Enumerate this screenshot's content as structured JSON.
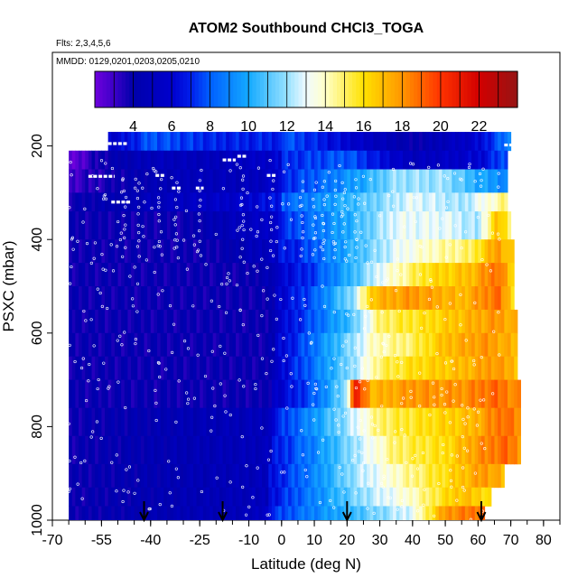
{
  "chart_data": {
    "type": "heatmap",
    "title": "ATOM2 Southbound CHCl3_TOGA",
    "annotations": [
      "Flts: 2,3,4,5,6",
      "MMDD: 0129,0201,0203,0205,0210"
    ],
    "xlabel": "Latitude (deg N)",
    "ylabel": "PSXC (mbar)",
    "xlim": [
      -70,
      85
    ],
    "ylim": [
      1000,
      0
    ],
    "x_ticks": [
      -70,
      -55,
      -40,
      -25,
      -10,
      0,
      10,
      20,
      30,
      40,
      50,
      60,
      70,
      80
    ],
    "x_tick_labels": [
      "-70",
      "-55",
      "-40",
      "-25",
      "-10",
      "0",
      "10",
      "20",
      "30",
      "40",
      "50",
      "60",
      "70",
      "80"
    ],
    "y_ticks": [
      200,
      400,
      600,
      800,
      1000
    ],
    "y_tick_labels": [
      "200",
      "400",
      "600",
      "800",
      "1000"
    ],
    "colorbar": {
      "range": [
        2,
        24
      ],
      "ticks": [
        4,
        6,
        8,
        10,
        12,
        14,
        16,
        18,
        20,
        22
      ],
      "tick_labels": [
        "4",
        "6",
        "8",
        "10",
        "12",
        "14",
        "16",
        "18",
        "20",
        "22"
      ]
    },
    "profile_markers_lat": [
      -42,
      -18,
      20,
      61
    ],
    "heat_rows": [
      {
        "p_top": 170,
        "p_bot": 210,
        "lat_start": -53,
        "lat_end": 70,
        "lat": [
          -50,
          -40,
          -20,
          0,
          20,
          40,
          60,
          70
        ],
        "val": [
          7,
          9,
          8,
          8,
          6,
          4,
          6,
          9
        ]
      },
      {
        "p_top": 210,
        "p_bot": 250,
        "lat_start": -65,
        "lat_end": 69,
        "lat": [
          -65,
          -55,
          -40,
          -20,
          0,
          20,
          40,
          60,
          69
        ],
        "val": [
          3,
          5,
          6,
          6,
          7,
          8,
          5,
          6,
          8
        ]
      },
      {
        "p_top": 250,
        "p_bot": 300,
        "lat_start": -65,
        "lat_end": 69,
        "lat": [
          -65,
          -50,
          -30,
          -10,
          10,
          25,
          35,
          50,
          60,
          69
        ],
        "val": [
          4,
          5,
          6,
          6,
          8,
          10,
          12,
          12,
          10,
          9
        ]
      },
      {
        "p_top": 300,
        "p_bot": 340,
        "lat_start": -65,
        "lat_end": 69,
        "lat": [
          -65,
          -40,
          -10,
          10,
          25,
          40,
          55,
          65,
          69
        ],
        "val": [
          5,
          6,
          7,
          9,
          11,
          13,
          12,
          14,
          15
        ]
      },
      {
        "p_top": 340,
        "p_bot": 400,
        "lat_start": -65,
        "lat_end": 70,
        "lat": [
          -65,
          -30,
          0,
          20,
          35,
          50,
          60,
          66,
          70
        ],
        "val": [
          5,
          5,
          7,
          10,
          13,
          13,
          12,
          17,
          15
        ]
      },
      {
        "p_top": 400,
        "p_bot": 450,
        "lat_start": -65,
        "lat_end": 71,
        "lat": [
          -65,
          -20,
          5,
          20,
          35,
          45,
          58,
          66,
          71
        ],
        "val": [
          5,
          5,
          7,
          10,
          13,
          14,
          15,
          18,
          16
        ]
      },
      {
        "p_top": 450,
        "p_bot": 500,
        "lat_start": -65,
        "lat_end": 71,
        "lat": [
          -65,
          -10,
          8,
          20,
          30,
          45,
          58,
          66,
          71
        ],
        "val": [
          5,
          5,
          7,
          10,
          13,
          16,
          17,
          19,
          16
        ]
      },
      {
        "p_top": 500,
        "p_bot": 550,
        "lat_start": -65,
        "lat_end": 71,
        "lat": [
          -65,
          -5,
          10,
          22,
          28,
          40,
          55,
          66,
          71
        ],
        "val": [
          5,
          5,
          8,
          12,
          17,
          18,
          17,
          19,
          16
        ]
      },
      {
        "p_top": 550,
        "p_bot": 600,
        "lat_start": -65,
        "lat_end": 72,
        "lat": [
          -65,
          -5,
          10,
          22,
          30,
          45,
          55,
          66,
          72
        ],
        "val": [
          5,
          5,
          8,
          11,
          15,
          16,
          17,
          18,
          17
        ]
      },
      {
        "p_top": 600,
        "p_bot": 650,
        "lat_start": -65,
        "lat_end": 72,
        "lat": [
          -65,
          -5,
          8,
          22,
          28,
          40,
          50,
          62,
          72
        ],
        "val": [
          5,
          5,
          8,
          12,
          14,
          15,
          17,
          18,
          17
        ]
      },
      {
        "p_top": 650,
        "p_bot": 700,
        "lat_start": -65,
        "lat_end": 72,
        "lat": [
          -65,
          -5,
          8,
          22,
          30,
          40,
          55,
          65,
          72
        ],
        "val": [
          5,
          5,
          8,
          12,
          15,
          16,
          17,
          18,
          17
        ]
      },
      {
        "p_top": 700,
        "p_bot": 760,
        "lat_start": -65,
        "lat_end": 73,
        "lat": [
          -65,
          -5,
          10,
          20,
          22,
          28,
          40,
          55,
          65,
          73
        ],
        "val": [
          5,
          5,
          8,
          12,
          21,
          17,
          18,
          18,
          19,
          18
        ]
      },
      {
        "p_top": 760,
        "p_bot": 820,
        "lat_start": -65,
        "lat_end": 73,
        "lat": [
          -65,
          -5,
          8,
          20,
          30,
          45,
          58,
          68,
          73
        ],
        "val": [
          5,
          6,
          9,
          12,
          15,
          16,
          17,
          19,
          18
        ]
      },
      {
        "p_top": 820,
        "p_bot": 880,
        "lat_start": -65,
        "lat_end": 73,
        "lat": [
          -65,
          -5,
          10,
          22,
          35,
          50,
          60,
          68,
          73
        ],
        "val": [
          5,
          6,
          9,
          12,
          15,
          16,
          18,
          19,
          18
        ]
      },
      {
        "p_top": 880,
        "p_bot": 930,
        "lat_start": -65,
        "lat_end": 68,
        "lat": [
          -65,
          -5,
          10,
          22,
          35,
          50,
          62,
          68
        ],
        "val": [
          5,
          6,
          9,
          12,
          14,
          16,
          18,
          17
        ]
      },
      {
        "p_top": 930,
        "p_bot": 970,
        "lat_start": -65,
        "lat_end": 64,
        "lat": [
          -65,
          -5,
          10,
          25,
          40,
          55,
          64
        ],
        "val": [
          5,
          6,
          9,
          12,
          14,
          17,
          16
        ]
      },
      {
        "p_top": 970,
        "p_bot": 1000,
        "lat_start": -65,
        "lat_end": 62,
        "lat": [
          -65,
          -10,
          10,
          25,
          40,
          50,
          62
        ],
        "val": [
          5,
          6,
          9,
          11,
          13,
          18,
          19
        ]
      }
    ],
    "flight_legs": [
      {
        "lat": -55,
        "p": 265,
        "half_width": 4
      },
      {
        "lat": -50,
        "p": 195,
        "half_width": 3
      },
      {
        "lat": -49,
        "p": 320,
        "half_width": 3
      },
      {
        "lat": -37,
        "p": 263,
        "half_width": 1.5
      },
      {
        "lat": -32,
        "p": 290,
        "half_width": 1.5
      },
      {
        "lat": -25,
        "p": 290,
        "half_width": 1.2
      },
      {
        "lat": -16,
        "p": 230,
        "half_width": 2
      },
      {
        "lat": -12,
        "p": 222,
        "half_width": 1.5
      },
      {
        "lat": -3,
        "p": 263,
        "half_width": 1.5
      },
      {
        "lat": 70,
        "p": 198,
        "half_width": 2
      }
    ]
  }
}
